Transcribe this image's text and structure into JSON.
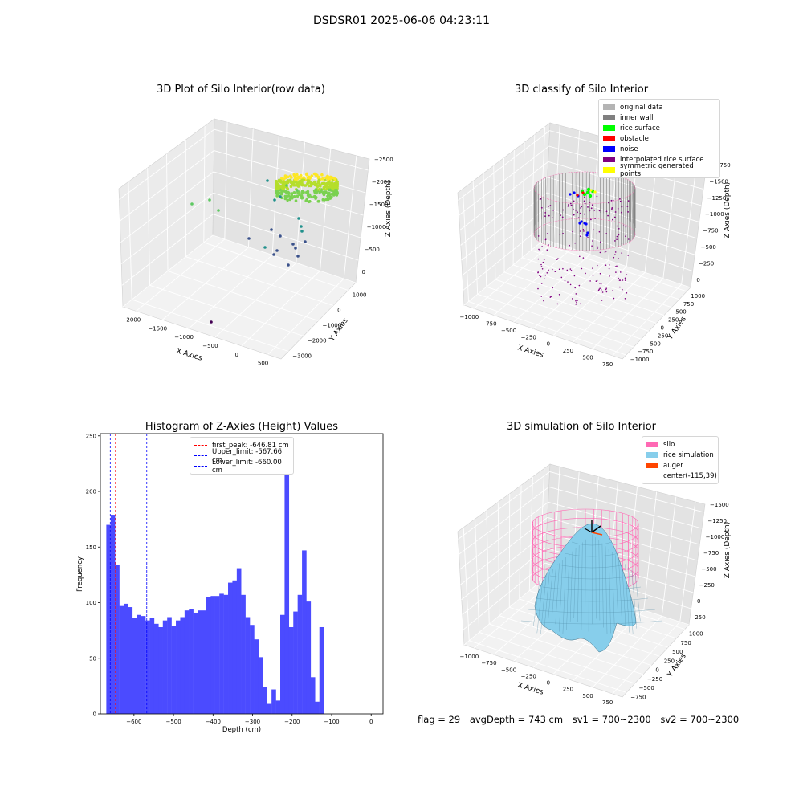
{
  "suptitle": "DSDSR01 2025-06-06 04:23:11",
  "footer": {
    "flag": "flag = 29",
    "avg_depth": "avgDepth = 743 cm",
    "sv1": "sv1 = 700~2300",
    "sv2": "sv2 = 700~2300"
  },
  "colors": {
    "bar": "#4b4bff",
    "first_peak": "#ff0000",
    "limits": "#0000ff",
    "silo": "#ff69b4",
    "rice": "#87ceeb",
    "auger": "#ff4500"
  },
  "chart_data": [
    {
      "type": "scatter",
      "title": "3D Plot of Silo Interior(row data)",
      "xlabel": "X Axies",
      "ylabel": "Y Axies",
      "zlabel": "Z Axies (Depth)",
      "x_ticks": [
        "−2000",
        "−1500",
        "−1000",
        "−500",
        "0",
        "500"
      ],
      "y_ticks": [
        "1000",
        "0",
        "−1000",
        "−2000",
        "−3000"
      ],
      "z_ticks": [
        "0",
        "−500",
        "−1000",
        "−1500",
        "−2000",
        "−2500"
      ],
      "colormap": "viridis"
    },
    {
      "type": "scatter",
      "title": "3D classify of Silo Interior",
      "xlabel": "X Axies",
      "ylabel": "Y Axies",
      "zlabel": "Z Axies (Depth)",
      "x_ticks": [
        "−1000",
        "−750",
        "−500",
        "−250",
        "0",
        "250",
        "500",
        "750"
      ],
      "y_ticks": [
        "1000",
        "750",
        "500",
        "250",
        "0",
        "−250",
        "−500",
        "−750",
        "−1000"
      ],
      "z_ticks": [
        "0",
        "−250",
        "−500",
        "−750",
        "−1000",
        "−1250",
        "−1500",
        "−1750"
      ],
      "z_ticks_partial": [
        "0"
      ],
      "legend": [
        {
          "label": "original data",
          "color": "#b4b4b4"
        },
        {
          "label": "inner wall",
          "color": "#808080"
        },
        {
          "label": "rice surface",
          "color": "#00ff00"
        },
        {
          "label": "obstacle",
          "color": "#ff0000"
        },
        {
          "label": "noise",
          "color": "#0000ff"
        },
        {
          "label": "interpolated rice surface",
          "color": "#800080"
        },
        {
          "label": "symmetric generated points",
          "color": "#ffff00"
        }
      ],
      "legend_position": "upper-right"
    },
    {
      "type": "bar",
      "title": "Histogram of Z-Axies (Height) Values",
      "xlabel": "Depth (cm)",
      "ylabel": "Frequency",
      "xlim": [
        -685,
        30
      ],
      "ylim": [
        0,
        252
      ],
      "x_ticks": [
        -600,
        -500,
        -400,
        -300,
        -200,
        -100,
        0
      ],
      "y_ticks": [
        0,
        50,
        100,
        150,
        200,
        250
      ],
      "bin_start": -670,
      "bin_width": 11,
      "values": [
        170,
        179,
        134,
        97,
        99,
        96,
        86,
        89,
        88,
        84,
        86,
        81,
        78,
        84,
        87,
        79,
        84,
        87,
        93,
        94,
        91,
        93,
        93,
        105,
        106,
        106,
        108,
        107,
        118,
        120,
        131,
        107,
        87,
        80,
        67,
        51,
        24,
        9,
        22,
        12,
        89,
        240,
        78,
        92,
        107,
        147,
        101,
        33,
        11,
        78
      ],
      "lines": [
        {
          "name": "first_peak: -646.81 cm",
          "x": -646.81
        },
        {
          "name": "Upper_limit: -567.66 cm",
          "x": -567.66
        },
        {
          "name": "Lower_limit: -660.00 cm",
          "x": -660.0
        }
      ],
      "legend_position": "upper-center"
    },
    {
      "type": "surface",
      "title": "3D simulation of Silo Interior",
      "xlabel": "X Axies",
      "ylabel": "Y Axies",
      "zlabel": "Z Axies (Depth)",
      "x_ticks": [
        "−1000",
        "−750",
        "−500",
        "−250",
        "0",
        "250",
        "500",
        "750"
      ],
      "y_ticks": [
        "1000",
        "750",
        "500",
        "250",
        "0",
        "−250",
        "−500",
        "−750"
      ],
      "z_ticks": [
        "250",
        "0",
        "−250",
        "−500",
        "−750",
        "−1000",
        "−1250",
        "−1500"
      ],
      "legend": [
        {
          "label": "silo",
          "color": "#ff69b4"
        },
        {
          "label": "rice simulation",
          "color": "#87ceeb"
        },
        {
          "label": "auger",
          "color": "#ff4500"
        },
        {
          "label": "center(-115,39)",
          "color": ""
        }
      ],
      "legend_position": "upper-right"
    }
  ]
}
